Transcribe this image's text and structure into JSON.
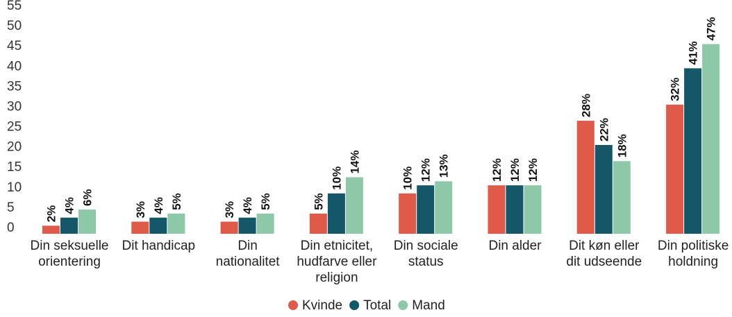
{
  "chart_data": {
    "type": "bar",
    "title": "",
    "xlabel": "",
    "ylabel": "",
    "ylim": [
      0,
      55
    ],
    "yticks": [
      0,
      5,
      10,
      15,
      20,
      25,
      30,
      35,
      40,
      45,
      50,
      55
    ],
    "grid": false,
    "legend_position": "bottom",
    "categories": [
      [
        "Din seksuelle",
        "orientering"
      ],
      [
        "Dit handicap"
      ],
      [
        "Din",
        "nationalitet"
      ],
      [
        "Din etnicitet,",
        "hudfarve eller",
        "religion"
      ],
      [
        "Din sociale",
        "status"
      ],
      [
        "Din alder"
      ],
      [
        "Dit køn eller",
        "dit udseende"
      ],
      [
        "Din politiske",
        "holdning"
      ]
    ],
    "series": [
      {
        "name": "Kvinde",
        "color": "#e05a4a",
        "values": [
          2,
          3,
          3,
          5,
          10,
          12,
          28,
          32
        ],
        "labels": [
          "2%",
          "3%",
          "3%",
          "5%",
          "10%",
          "12%",
          "28%",
          "32%"
        ]
      },
      {
        "name": "Total",
        "color": "#145768",
        "values": [
          4,
          4,
          4,
          10,
          12,
          12,
          22,
          41
        ],
        "labels": [
          "4%",
          "4%",
          "4%",
          "10%",
          "12%",
          "12%",
          "22%",
          "41%"
        ]
      },
      {
        "name": "Mand",
        "color": "#8dc8a8",
        "values": [
          6,
          5,
          5,
          14,
          13,
          12,
          18,
          47
        ],
        "labels": [
          "6%",
          "5%",
          "5%",
          "14%",
          "13%",
          "12%",
          "18%",
          "47%"
        ]
      }
    ]
  }
}
